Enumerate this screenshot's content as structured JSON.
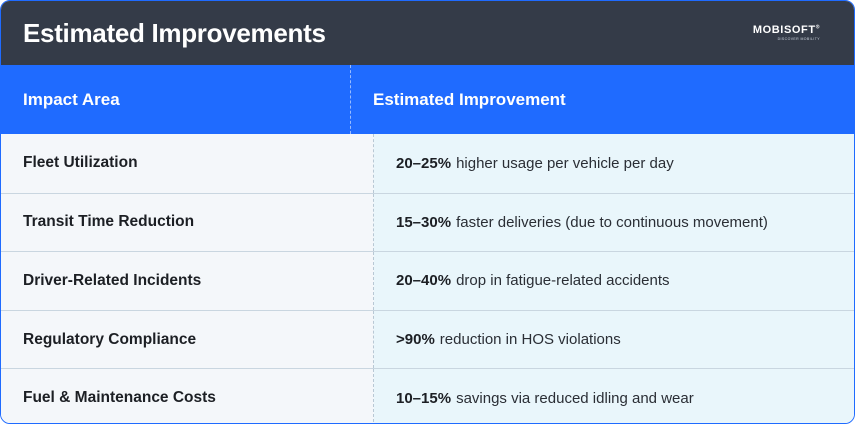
{
  "header": {
    "title": "Estimated Improvements",
    "logo_text": "MOBISOFT",
    "logo_tagline": "DISCOVER MOBILITY"
  },
  "table": {
    "columns": [
      "Impact Area",
      "Estimated Improvement"
    ],
    "rows": [
      {
        "area": "Fleet Utilization",
        "value": "20–25%",
        "detail": "higher usage per vehicle per day"
      },
      {
        "area": "Transit Time Reduction",
        "value": "15–30%",
        "detail": "faster deliveries (due to continuous movement)"
      },
      {
        "area": "Driver-Related Incidents",
        "value": "20–40%",
        "detail": "drop in fatigue-related accidents"
      },
      {
        "area": "Regulatory Compliance",
        "value": ">90%",
        "detail": "reduction in HOS violations"
      },
      {
        "area": "Fuel & Maintenance Costs",
        "value": "10–15%",
        "detail": "savings via reduced idling and wear"
      }
    ]
  },
  "colors": {
    "title_bar": "#343b48",
    "header_row": "#1f6bff",
    "left_cells": "#f4f7fa",
    "right_cells": "#e9f6fb"
  }
}
